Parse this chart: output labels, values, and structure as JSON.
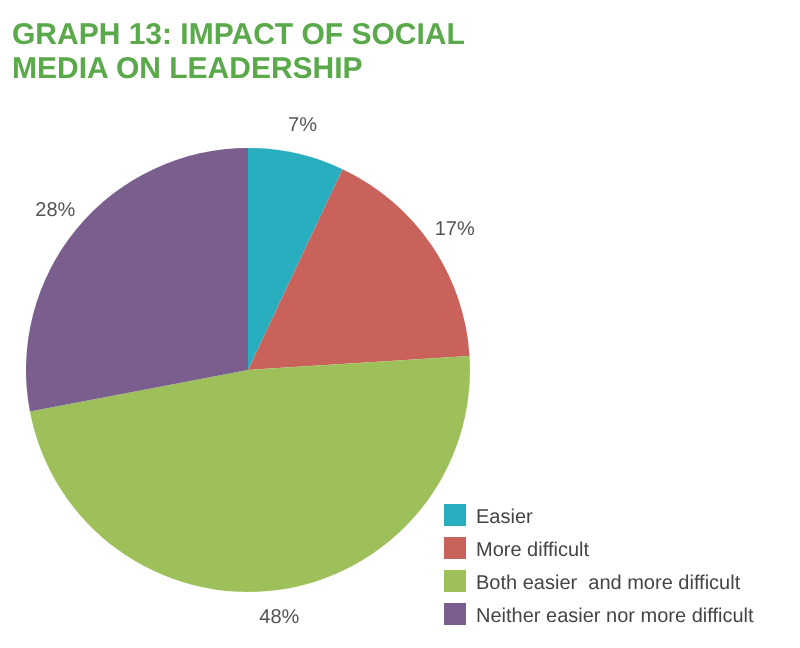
{
  "chart_data": {
    "type": "pie",
    "title": "GRAPH 13: IMPACT OF SOCIAL MEDIA ON LEADERSHIP",
    "categories": [
      "Easier",
      "More difficult",
      "Both easier  and more difficult",
      "Neither easier nor more difficult"
    ],
    "values": [
      7,
      17,
      48,
      28
    ],
    "colors": [
      "#29aebf",
      "#c9625b",
      "#9dc05b",
      "#7a5f8e"
    ],
    "value_labels": [
      "7%",
      "17%",
      "48%",
      "28%"
    ],
    "legend": "bottom right"
  }
}
